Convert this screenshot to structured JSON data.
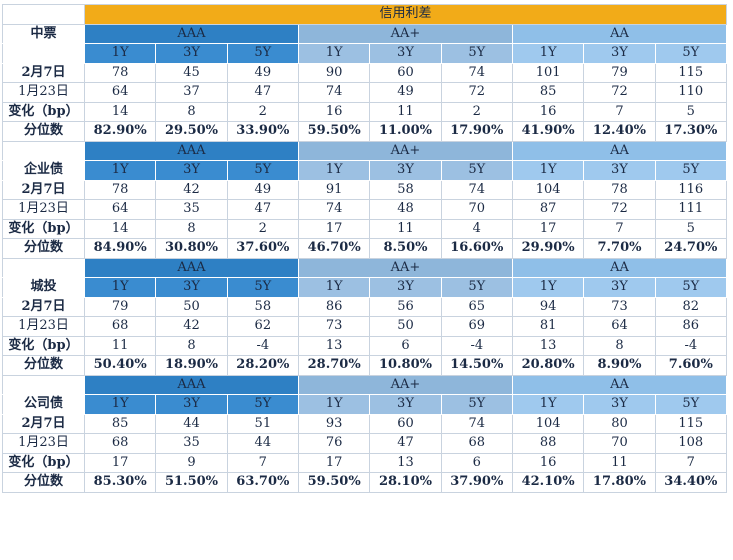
{
  "title": "信用利差",
  "tenors": [
    "1Y",
    "3Y",
    "5Y"
  ],
  "ratings": [
    "AAA",
    "AA+",
    "AA"
  ],
  "row_labels": [
    "2月7日",
    "1月23日",
    "变化（bp）",
    "分位数"
  ],
  "colors": {
    "title_bg": "#f2ab18",
    "aaa_bg": "#2e80c4",
    "aa_plus_bg": "#8eb6da",
    "aa_bg": "#8fbfe8"
  },
  "sections": [
    {
      "name": "中票",
      "rows": [
        [
          "78",
          "45",
          "49",
          "90",
          "60",
          "74",
          "101",
          "79",
          "115"
        ],
        [
          "64",
          "37",
          "47",
          "74",
          "49",
          "72",
          "85",
          "72",
          "110"
        ],
        [
          "14",
          "8",
          "2",
          "16",
          "11",
          "2",
          "16",
          "7",
          "5"
        ],
        [
          "82.90%",
          "29.50%",
          "33.90%",
          "59.50%",
          "11.00%",
          "17.90%",
          "41.90%",
          "12.40%",
          "17.30%"
        ]
      ]
    },
    {
      "name": "企业债",
      "rows": [
        [
          "78",
          "42",
          "49",
          "91",
          "58",
          "74",
          "104",
          "78",
          "116"
        ],
        [
          "64",
          "35",
          "47",
          "74",
          "48",
          "70",
          "87",
          "72",
          "111"
        ],
        [
          "14",
          "8",
          "2",
          "17",
          "11",
          "4",
          "17",
          "7",
          "5"
        ],
        [
          "84.90%",
          "30.80%",
          "37.60%",
          "46.70%",
          "8.50%",
          "16.60%",
          "29.90%",
          "7.70%",
          "24.70%"
        ]
      ]
    },
    {
      "name": "城投",
      "rows": [
        [
          "79",
          "50",
          "58",
          "86",
          "56",
          "65",
          "94",
          "73",
          "82"
        ],
        [
          "68",
          "42",
          "62",
          "73",
          "50",
          "69",
          "81",
          "64",
          "86"
        ],
        [
          "11",
          "8",
          "-4",
          "13",
          "6",
          "-4",
          "13",
          "8",
          "-4"
        ],
        [
          "50.40%",
          "18.90%",
          "28.20%",
          "28.70%",
          "10.80%",
          "14.50%",
          "20.80%",
          "8.90%",
          "7.60%"
        ]
      ]
    },
    {
      "name": "公司债",
      "rows": [
        [
          "85",
          "44",
          "51",
          "93",
          "60",
          "74",
          "104",
          "80",
          "115"
        ],
        [
          "68",
          "35",
          "44",
          "76",
          "47",
          "68",
          "88",
          "70",
          "108"
        ],
        [
          "17",
          "9",
          "7",
          "17",
          "13",
          "6",
          "16",
          "11",
          "7"
        ],
        [
          "85.30%",
          "51.50%",
          "63.70%",
          "59.50%",
          "28.10%",
          "37.90%",
          "42.10%",
          "17.80%",
          "34.40%"
        ]
      ]
    }
  ]
}
